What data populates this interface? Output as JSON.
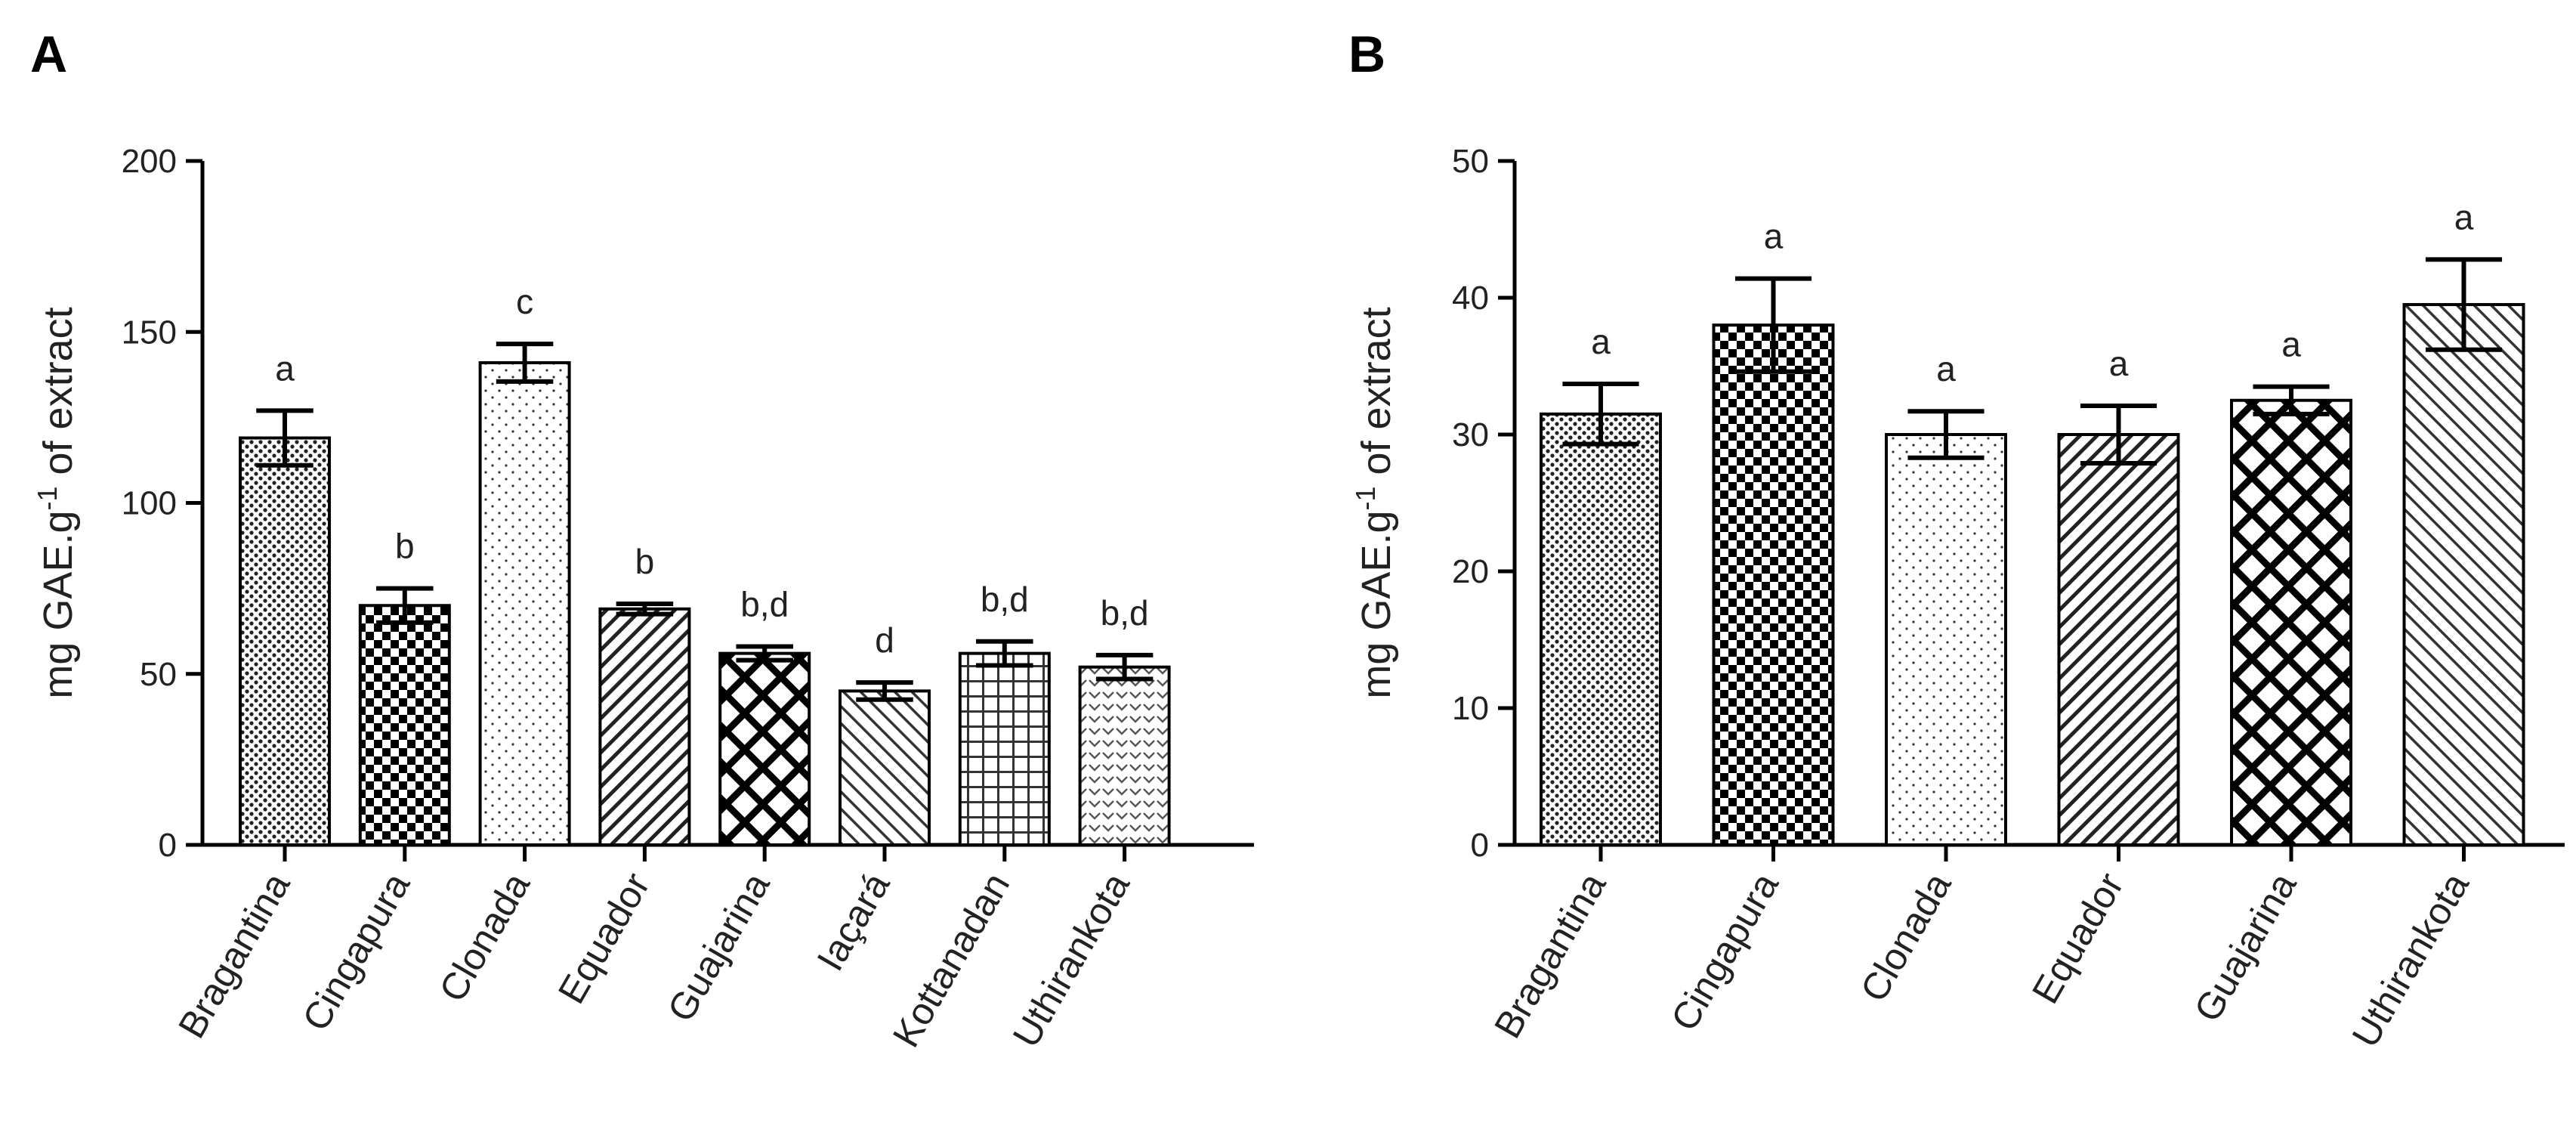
{
  "chart_data": [
    {
      "type": "bar",
      "panel_label": "A",
      "ylabel_main": "mg GAE.g",
      "ylabel_sup": "-1",
      "ylabel_tail": " of extract",
      "ylim": [
        0,
        200
      ],
      "yticks": [
        "0",
        "50",
        "100",
        "150",
        "200"
      ],
      "categories": [
        "Bragantina",
        "Cingapura",
        "Clonada",
        "Equador",
        "Guajarina",
        "Iaçará",
        "Kottanadan",
        "Uthirankota"
      ],
      "values": [
        119,
        70,
        141,
        69,
        56,
        45,
        56,
        52
      ],
      "errors": [
        8,
        5,
        5.5,
        1.5,
        2,
        2.5,
        3.5,
        3.5
      ],
      "significance": [
        "a",
        "b",
        "c",
        "b",
        "b,d",
        "d",
        "b,d",
        "b,d"
      ],
      "patterns": [
        "dense-dots",
        "checker",
        "sparse-dots",
        "diag-left",
        "crosshatch",
        "diag-right",
        "grid",
        "chevron"
      ]
    },
    {
      "type": "bar",
      "panel_label": "B",
      "ylabel_main": "mg GAE.g",
      "ylabel_sup": "-1",
      "ylabel_tail": " of extract",
      "ylim": [
        0,
        50
      ],
      "yticks": [
        "0",
        "10",
        "20",
        "30",
        "40",
        "50"
      ],
      "categories": [
        "Bragantina",
        "Cingapura",
        "Clonada",
        "Equador",
        "Guajarina",
        "Uthirankota"
      ],
      "values": [
        31.5,
        38,
        30,
        30,
        32.5,
        39.5
      ],
      "errors": [
        2.2,
        3.4,
        1.7,
        2.1,
        1.0,
        3.3
      ],
      "significance": [
        "a",
        "a",
        "a",
        "a",
        "a",
        "a"
      ],
      "patterns": [
        "dense-dots",
        "checker",
        "sparse-dots",
        "diag-left",
        "crosshatch",
        "diag-right"
      ]
    }
  ]
}
